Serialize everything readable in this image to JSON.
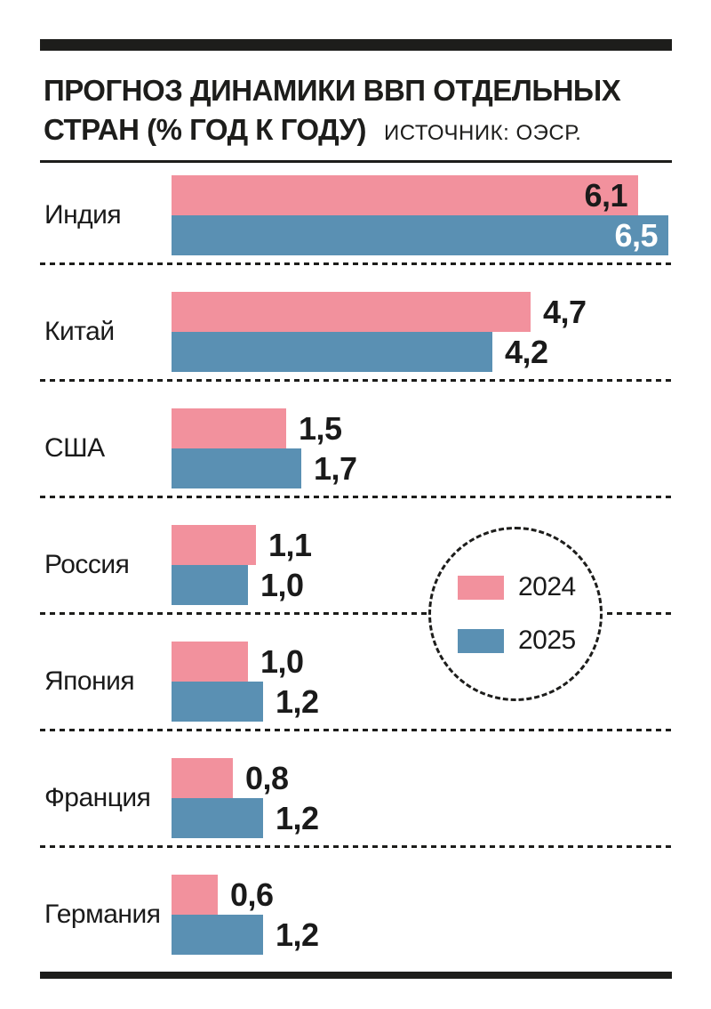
{
  "header": {
    "title_line1": "ПРОГНОЗ ДИНАМИКИ ВВП ОТДЕЛЬНЫХ",
    "title_line2": "СТРАН (% ГОД К ГОДУ)",
    "source": "ИСТОЧНИК: ОЭСР."
  },
  "legend": {
    "items": [
      {
        "label": "2024",
        "color": "#f2919d"
      },
      {
        "label": "2025",
        "color": "#5a90b3"
      }
    ]
  },
  "chart_data": {
    "type": "bar",
    "orientation": "horizontal",
    "title": "ПРОГНОЗ ДИНАМИКИ ВВП ОТДЕЛЬНЫХ СТРАН (% ГОД К ГОДУ)",
    "source": "ИСТОЧНИК: ОЭСР.",
    "categories": [
      "Индия",
      "Китай",
      "США",
      "Россия",
      "Япония",
      "Франция",
      "Германия"
    ],
    "series": [
      {
        "name": "2024",
        "color": "#f2919d",
        "values": [
          6.1,
          4.7,
          1.5,
          1.1,
          1.0,
          0.8,
          0.6
        ],
        "labels": [
          "6,1",
          "4,7",
          "1,5",
          "1,1",
          "1,0",
          "0,8",
          "0,6"
        ]
      },
      {
        "name": "2025",
        "color": "#5a90b3",
        "values": [
          6.5,
          4.2,
          1.7,
          1.0,
          1.2,
          1.2,
          1.2
        ],
        "labels": [
          "6,5",
          "4,2",
          "1,7",
          "1,0",
          "1,2",
          "1,2",
          "1,2"
        ]
      }
    ],
    "xlim": [
      0,
      6.5
    ],
    "grid": false,
    "legend_position": "dashed circle overlay, middle right",
    "value_label_style": "comma decimal, bold; inside bar for largest values, white on blue"
  },
  "colors": {
    "ink": "#1d1d1b",
    "text": "#1a1a1a",
    "bar_2024": "#f2919d",
    "bar_2025": "#5a90b3",
    "inside_label_on_blue": "#ffffff",
    "background": "#ffffff"
  }
}
